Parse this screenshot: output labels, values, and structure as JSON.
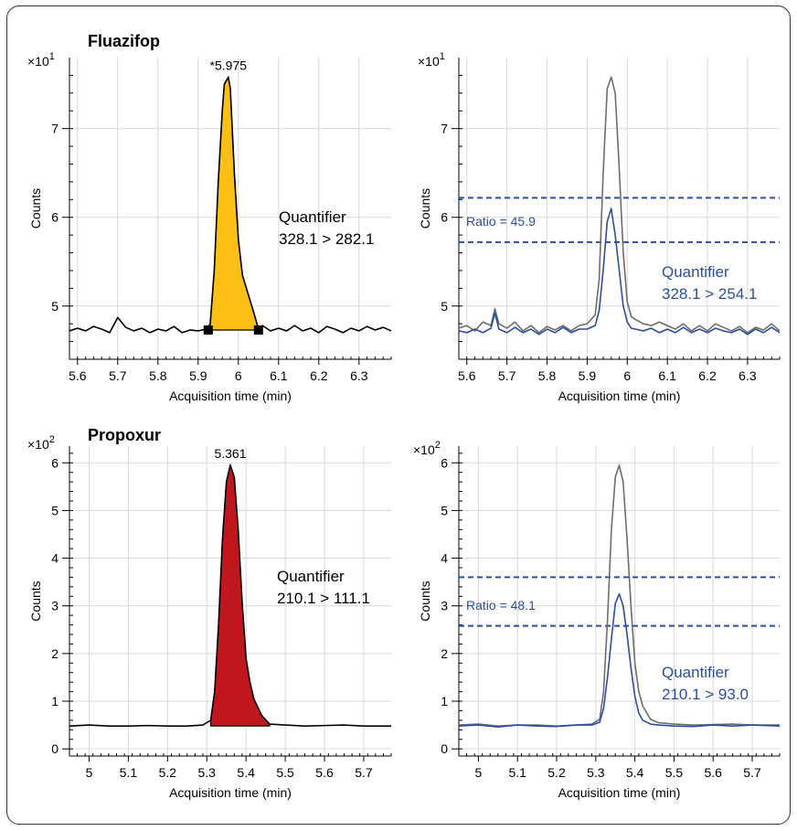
{
  "chart_data": [
    {
      "type": "line",
      "title": "Fluazifop",
      "xlabel": "Acquisition time (min)",
      "ylabel": "Counts",
      "y_multiplier": "×10",
      "y_multiplier_exp": "1",
      "xlim": [
        5.58,
        6.38
      ],
      "ylim": [
        4.4,
        7.8
      ],
      "xticks": [
        5.6,
        5.7,
        5.8,
        5.9,
        6.0,
        6.1,
        6.2,
        6.3
      ],
      "xtick_labels": [
        "5.6",
        "5.7",
        "5.8",
        "5.9",
        "6",
        "6.1",
        "6.2",
        "6.3"
      ],
      "yticks": [
        5,
        6,
        7
      ],
      "ytick_labels": [
        "5",
        "6",
        "7"
      ],
      "peak_label": "*5.975",
      "annotation": [
        "Quantifier",
        "328.1 > 282.1"
      ],
      "fill_color": "#fbbf16",
      "integration": {
        "start": 5.925,
        "end": 6.05,
        "start_y": 4.73,
        "end_y": 4.73
      },
      "series": [
        {
          "color": "#000000",
          "x": [
            5.58,
            5.6,
            5.62,
            5.64,
            5.66,
            5.68,
            5.7,
            5.72,
            5.74,
            5.76,
            5.78,
            5.8,
            5.82,
            5.84,
            5.86,
            5.88,
            5.9,
            5.92,
            5.93,
            5.94,
            5.95,
            5.96,
            5.965,
            5.975,
            5.98,
            5.99,
            6.0,
            6.01,
            6.02,
            6.03,
            6.04,
            6.05,
            6.06,
            6.08,
            6.1,
            6.12,
            6.14,
            6.16,
            6.18,
            6.2,
            6.22,
            6.24,
            6.26,
            6.28,
            6.3,
            6.32,
            6.34,
            6.36,
            6.38
          ],
          "y": [
            4.72,
            4.75,
            4.72,
            4.77,
            4.74,
            4.7,
            4.87,
            4.76,
            4.72,
            4.75,
            4.7,
            4.74,
            4.72,
            4.77,
            4.7,
            4.73,
            4.72,
            4.74,
            4.8,
            5.4,
            6.4,
            7.2,
            7.5,
            7.58,
            7.45,
            6.5,
            5.75,
            5.35,
            5.2,
            5.05,
            4.9,
            4.74,
            4.78,
            4.72,
            4.75,
            4.72,
            4.78,
            4.72,
            4.75,
            4.7,
            4.77,
            4.74,
            4.7,
            4.75,
            4.72,
            4.77,
            4.73,
            4.76,
            4.72
          ]
        }
      ]
    },
    {
      "type": "line",
      "title": "",
      "xlabel": "Acquisition time (min)",
      "ylabel": "Counts",
      "y_multiplier": "×10",
      "y_multiplier_exp": "1",
      "xlim": [
        5.58,
        6.38
      ],
      "ylim": [
        4.4,
        7.8
      ],
      "xticks": [
        5.6,
        5.7,
        5.8,
        5.9,
        6.0,
        6.1,
        6.2,
        6.3
      ],
      "xtick_labels": [
        "5.6",
        "5.7",
        "5.8",
        "5.9",
        "6",
        "6.1",
        "6.2",
        "6.3"
      ],
      "yticks": [
        5,
        6,
        7
      ],
      "ytick_labels": [
        "5",
        "6",
        "7"
      ],
      "ratio_label": "Ratio = 45.9",
      "ratio_lines": [
        6.22,
        5.72
      ],
      "annotation": [
        "Quantifier",
        "328.1 > 254.1"
      ],
      "series": [
        {
          "color": "#6d6d6d",
          "x": [
            5.58,
            5.6,
            5.62,
            5.64,
            5.66,
            5.67,
            5.68,
            5.7,
            5.72,
            5.74,
            5.76,
            5.78,
            5.8,
            5.82,
            5.84,
            5.86,
            5.88,
            5.9,
            5.92,
            5.93,
            5.94,
            5.95,
            5.96,
            5.97,
            5.98,
            5.99,
            6.0,
            6.01,
            6.02,
            6.04,
            6.06,
            6.08,
            6.1,
            6.12,
            6.14,
            6.16,
            6.18,
            6.2,
            6.22,
            6.24,
            6.26,
            6.28,
            6.3,
            6.32,
            6.34,
            6.36,
            6.38
          ],
          "y": [
            4.75,
            4.78,
            4.72,
            4.82,
            4.78,
            4.97,
            4.8,
            4.75,
            4.82,
            4.72,
            4.78,
            4.7,
            4.77,
            4.73,
            4.78,
            4.72,
            4.78,
            4.8,
            4.9,
            5.3,
            6.5,
            7.45,
            7.58,
            7.4,
            6.55,
            5.6,
            5.05,
            4.88,
            4.85,
            4.8,
            4.78,
            4.82,
            4.78,
            4.74,
            4.8,
            4.72,
            4.78,
            4.72,
            4.8,
            4.76,
            4.72,
            4.77,
            4.7,
            4.76,
            4.73,
            4.8,
            4.72
          ]
        },
        {
          "color": "#2b4ea0",
          "x": [
            5.58,
            5.6,
            5.62,
            5.64,
            5.66,
            5.67,
            5.68,
            5.7,
            5.72,
            5.74,
            5.76,
            5.78,
            5.8,
            5.82,
            5.84,
            5.86,
            5.88,
            5.9,
            5.92,
            5.93,
            5.94,
            5.95,
            5.96,
            5.97,
            5.98,
            5.99,
            6.0,
            6.01,
            6.02,
            6.04,
            6.06,
            6.08,
            6.1,
            6.12,
            6.14,
            6.16,
            6.18,
            6.2,
            6.22,
            6.24,
            6.26,
            6.28,
            6.3,
            6.32,
            6.34,
            6.36,
            6.38
          ],
          "y": [
            4.72,
            4.7,
            4.74,
            4.7,
            4.75,
            4.92,
            4.74,
            4.7,
            4.76,
            4.7,
            4.74,
            4.68,
            4.74,
            4.7,
            4.76,
            4.7,
            4.74,
            4.74,
            4.78,
            4.95,
            5.4,
            5.95,
            6.1,
            5.8,
            5.4,
            5.0,
            4.82,
            4.75,
            4.74,
            4.72,
            4.75,
            4.7,
            4.74,
            4.7,
            4.76,
            4.7,
            4.74,
            4.7,
            4.75,
            4.72,
            4.7,
            4.74,
            4.68,
            4.74,
            4.7,
            4.76,
            4.7
          ]
        }
      ]
    },
    {
      "type": "line",
      "title": "Propoxur",
      "xlabel": "Acquisition time (min)",
      "ylabel": "Counts",
      "y_multiplier": "×10",
      "y_multiplier_exp": "2",
      "xlim": [
        4.95,
        5.77
      ],
      "ylim": [
        -0.15,
        6.35
      ],
      "xticks": [
        5.0,
        5.1,
        5.2,
        5.3,
        5.4,
        5.5,
        5.6,
        5.7
      ],
      "xtick_labels": [
        "5",
        "5.1",
        "5.2",
        "5.3",
        "5.4",
        "5.5",
        "5.6",
        "5.7"
      ],
      "yticks": [
        0,
        1,
        2,
        3,
        4,
        5,
        6
      ],
      "ytick_labels": [
        "0",
        "1",
        "2",
        "3",
        "4",
        "5",
        "6"
      ],
      "peak_label": "5.361",
      "annotation": [
        "Quantifier",
        "210.1 > 111.1"
      ],
      "fill_color": "#c0171f",
      "integration": {
        "start": 5.31,
        "end": 5.46,
        "start_y": 0.48,
        "end_y": 0.48
      },
      "series": [
        {
          "color": "#000000",
          "x": [
            4.95,
            5.0,
            5.05,
            5.1,
            5.15,
            5.2,
            5.25,
            5.29,
            5.31,
            5.32,
            5.33,
            5.34,
            5.35,
            5.36,
            5.37,
            5.38,
            5.39,
            5.4,
            5.41,
            5.42,
            5.44,
            5.46,
            5.5,
            5.55,
            5.6,
            5.65,
            5.7,
            5.77
          ],
          "y": [
            0.48,
            0.5,
            0.48,
            0.48,
            0.49,
            0.48,
            0.48,
            0.5,
            0.6,
            1.2,
            2.6,
            4.4,
            5.6,
            5.95,
            5.7,
            4.6,
            3.1,
            1.9,
            1.4,
            1.05,
            0.7,
            0.52,
            0.5,
            0.48,
            0.49,
            0.5,
            0.48,
            0.48
          ]
        }
      ]
    },
    {
      "type": "line",
      "title": "",
      "xlabel": "Acquisition time (min)",
      "ylabel": "Counts",
      "y_multiplier": "×10",
      "y_multiplier_exp": "2",
      "xlim": [
        4.95,
        5.77
      ],
      "ylim": [
        -0.15,
        6.35
      ],
      "xticks": [
        5.0,
        5.1,
        5.2,
        5.3,
        5.4,
        5.5,
        5.6,
        5.7
      ],
      "xtick_labels": [
        "5",
        "5.1",
        "5.2",
        "5.3",
        "5.4",
        "5.5",
        "5.6",
        "5.7"
      ],
      "yticks": [
        0,
        1,
        2,
        3,
        4,
        5,
        6
      ],
      "ytick_labels": [
        "0",
        "1",
        "2",
        "3",
        "4",
        "5",
        "6"
      ],
      "ratio_label": "Ratio = 48.1",
      "ratio_lines": [
        3.6,
        2.58
      ],
      "annotation": [
        "Quantifier",
        "210.1 > 93.0"
      ],
      "series": [
        {
          "color": "#6d6d6d",
          "x": [
            4.95,
            5.0,
            5.05,
            5.1,
            5.15,
            5.2,
            5.25,
            5.29,
            5.31,
            5.32,
            5.33,
            5.34,
            5.35,
            5.36,
            5.37,
            5.38,
            5.39,
            5.4,
            5.41,
            5.42,
            5.44,
            5.46,
            5.5,
            5.55,
            5.6,
            5.65,
            5.7,
            5.77
          ],
          "y": [
            0.5,
            0.52,
            0.48,
            0.5,
            0.5,
            0.48,
            0.5,
            0.52,
            0.62,
            1.2,
            2.7,
            4.6,
            5.7,
            5.95,
            5.6,
            4.4,
            3.0,
            1.8,
            1.2,
            0.9,
            0.62,
            0.55,
            0.52,
            0.5,
            0.51,
            0.52,
            0.5,
            0.5
          ]
        },
        {
          "color": "#2b4ea0",
          "x": [
            4.95,
            5.0,
            5.05,
            5.1,
            5.15,
            5.2,
            5.25,
            5.29,
            5.31,
            5.32,
            5.33,
            5.34,
            5.35,
            5.36,
            5.37,
            5.38,
            5.39,
            5.4,
            5.41,
            5.42,
            5.44,
            5.46,
            5.5,
            5.55,
            5.6,
            5.65,
            5.7,
            5.77
          ],
          "y": [
            0.48,
            0.5,
            0.46,
            0.5,
            0.48,
            0.47,
            0.5,
            0.5,
            0.56,
            0.85,
            1.5,
            2.3,
            3.05,
            3.25,
            3.0,
            2.4,
            1.7,
            1.1,
            0.75,
            0.6,
            0.52,
            0.5,
            0.48,
            0.47,
            0.5,
            0.48,
            0.5,
            0.48
          ]
        }
      ]
    }
  ]
}
